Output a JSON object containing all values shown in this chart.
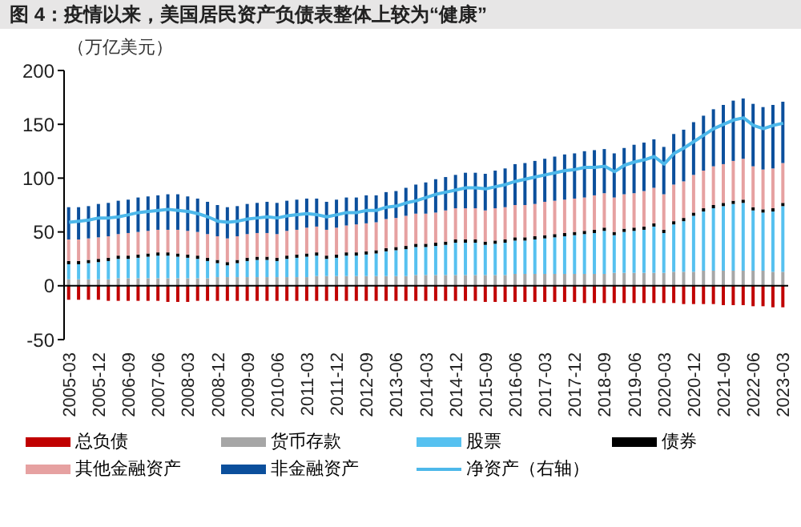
{
  "chart_data": {
    "type": "bar",
    "title": "图 4：疫情以来，美国居民资产负债表整体上较为“健康”",
    "ylabel": "（万亿美元）",
    "categories": [
      "2005-03",
      null,
      null,
      "2005-12",
      null,
      null,
      "2006-09",
      null,
      null,
      "2007-06",
      null,
      null,
      "2008-03",
      null,
      null,
      "2008-12",
      null,
      null,
      "2009-09",
      null,
      null,
      "2010-06",
      null,
      null,
      "2011-03",
      null,
      null,
      "2011-12",
      null,
      null,
      "2012-09",
      null,
      null,
      "2013-06",
      null,
      null,
      "2014-03",
      null,
      null,
      "2014-12",
      null,
      null,
      "2015-09",
      null,
      null,
      "2016-06",
      null,
      null,
      "2017-03",
      null,
      null,
      "2017-12",
      null,
      null,
      "2018-09",
      null,
      null,
      "2019-06",
      null,
      null,
      "2020-03",
      null,
      null,
      "2020-12",
      null,
      null,
      "2021-09",
      null,
      null,
      "2022-06",
      null,
      null,
      "2023-03"
    ],
    "stacked": true,
    "ylim": [
      -50,
      200
    ],
    "yticks": [
      -50,
      0,
      50,
      100,
      150,
      200
    ],
    "grid": false,
    "ref_lines": [
      {
        "axis": "y",
        "value": 0,
        "color": "#000000"
      }
    ],
    "legend": "bottom",
    "marker": "none",
    "series": [
      {
        "name": "总负债",
        "color": "#c00000",
        "values": [
          -13,
          -13,
          -13,
          -13,
          -14,
          -14,
          -14,
          -14,
          -14,
          -14,
          -15,
          -15,
          -15,
          -14,
          -14,
          -14,
          -14,
          -14,
          -14,
          -14,
          -14,
          -14,
          -14,
          -14,
          -14,
          -14,
          -14,
          -14,
          -14,
          -14,
          -14,
          -14,
          -14,
          -14,
          -14,
          -14,
          -14,
          -14,
          -14,
          -14,
          -14,
          -14,
          -15,
          -15,
          -15,
          -15,
          -15,
          -15,
          -15,
          -15,
          -15,
          -15,
          -16,
          -16,
          -16,
          -16,
          -16,
          -16,
          -16,
          -16,
          -16,
          -16,
          -17,
          -17,
          -17,
          -17,
          -18,
          -18,
          -18,
          -19,
          -19,
          -20,
          -20
        ]
      },
      {
        "name": "货币存款",
        "color": "#a6a6a6",
        "values": [
          6,
          6,
          6,
          6,
          6,
          7,
          7,
          7,
          7,
          7,
          7,
          7,
          7,
          7,
          7,
          8,
          8,
          8,
          8,
          8,
          8,
          8,
          8,
          8,
          8,
          9,
          9,
          9,
          9,
          9,
          9,
          9,
          9,
          9,
          9,
          10,
          10,
          10,
          10,
          10,
          10,
          10,
          10,
          10,
          10,
          11,
          11,
          11,
          11,
          11,
          11,
          11,
          11,
          11,
          11,
          12,
          12,
          12,
          12,
          12,
          12,
          13,
          13,
          13,
          14,
          14,
          14,
          14,
          14,
          14,
          14,
          13,
          13
        ]
      },
      {
        "name": "股票",
        "color": "#56c1f0",
        "values": [
          14,
          14,
          15,
          16,
          17,
          18,
          18,
          19,
          20,
          21,
          21,
          20,
          19,
          18,
          16,
          13,
          11,
          13,
          15,
          16,
          16,
          15,
          17,
          18,
          19,
          19,
          16,
          17,
          19,
          19,
          20,
          21,
          23,
          24,
          25,
          26,
          26,
          27,
          28,
          30,
          30,
          30,
          28,
          29,
          30,
          31,
          31,
          32,
          33,
          34,
          35,
          36,
          37,
          38,
          40,
          35,
          38,
          39,
          40,
          43,
          37,
          44,
          47,
          52,
          55,
          58,
          60,
          62,
          63,
          56,
          54,
          56,
          61
        ]
      },
      {
        "name": "债券",
        "color": "#000000",
        "values": [
          3,
          3,
          3,
          3,
          3,
          3,
          3,
          3,
          3,
          3,
          3,
          3,
          3,
          3,
          3,
          3,
          3,
          3,
          3,
          3,
          3,
          3,
          3,
          3,
          3,
          3,
          3,
          3,
          3,
          3,
          3,
          3,
          3,
          3,
          3,
          3,
          3,
          3,
          3,
          3,
          3,
          3,
          3,
          3,
          3,
          3,
          3,
          3,
          3,
          3,
          3,
          3,
          3,
          3,
          3,
          3,
          3,
          3,
          3,
          3,
          3,
          3,
          3,
          3,
          3,
          3,
          3,
          3,
          3,
          3,
          3,
          3,
          3
        ]
      },
      {
        "name": "其他金融资产",
        "color": "#e6a1a1",
        "values": [
          20,
          20,
          20,
          20,
          20,
          20,
          21,
          21,
          21,
          21,
          21,
          22,
          22,
          22,
          22,
          22,
          22,
          22,
          22,
          22,
          22,
          22,
          23,
          23,
          24,
          24,
          24,
          25,
          25,
          26,
          26,
          26,
          27,
          27,
          28,
          28,
          28,
          28,
          29,
          29,
          29,
          29,
          29,
          30,
          30,
          30,
          30,
          30,
          31,
          31,
          31,
          31,
          31,
          32,
          32,
          32,
          32,
          32,
          33,
          33,
          33,
          34,
          34,
          35,
          35,
          36,
          36,
          37,
          38,
          38,
          37,
          37,
          37
        ]
      },
      {
        "name": "非金融资产",
        "color": "#0b4f9c",
        "values": [
          30,
          30,
          30,
          31,
          31,
          31,
          31,
          32,
          32,
          32,
          33,
          33,
          32,
          31,
          30,
          29,
          29,
          28,
          28,
          28,
          29,
          29,
          28,
          28,
          27,
          26,
          26,
          26,
          26,
          25,
          26,
          25,
          25,
          25,
          26,
          27,
          29,
          31,
          31,
          31,
          33,
          33,
          34,
          35,
          36,
          38,
          39,
          40,
          40,
          41,
          42,
          42,
          43,
          42,
          41,
          41,
          43,
          45,
          45,
          45,
          44,
          47,
          48,
          49,
          51,
          53,
          55,
          56,
          56,
          58,
          58,
          59,
          57
        ]
      },
      {
        "name": "净资产（右轴）",
        "type": "line",
        "color": "#4db8ea",
        "values": [
          59,
          60,
          61,
          63,
          63,
          64,
          66,
          68,
          69,
          70,
          71,
          70,
          69,
          67,
          64,
          60,
          59,
          60,
          62,
          63,
          64,
          63,
          65,
          66,
          67,
          66,
          64,
          66,
          68,
          68,
          70,
          70,
          73,
          74,
          77,
          79,
          82,
          85,
          87,
          89,
          91,
          91,
          90,
          92,
          94,
          97,
          99,
          101,
          103,
          105,
          107,
          108,
          110,
          110,
          111,
          106,
          112,
          115,
          117,
          120,
          113,
          123,
          128,
          134,
          140,
          146,
          150,
          154,
          156,
          149,
          146,
          149,
          151
        ]
      }
    ]
  }
}
